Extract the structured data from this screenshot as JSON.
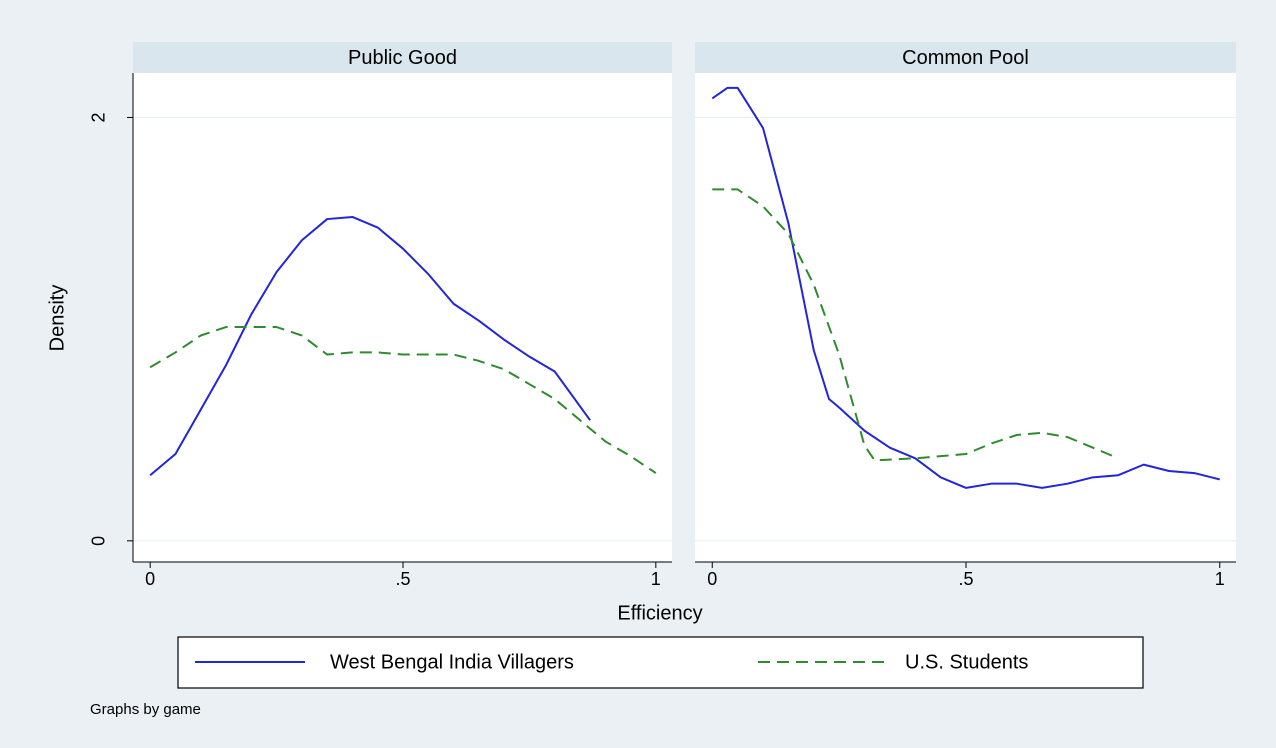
{
  "chart_data": [
    {
      "type": "line",
      "title": "Public Good",
      "xlim": [
        -0.034,
        1.032
      ],
      "ylim": [
        -0.1,
        2.21
      ],
      "xticks": [
        0,
        {
          "value": 0.5,
          "label": ".5"
        },
        1
      ],
      "yticks": [
        0,
        2
      ],
      "grid": true,
      "series": [
        {
          "name": "West Bengal India Villagers",
          "color": "#2424d8",
          "style": "solid",
          "x": [
            0,
            0.05,
            0.1,
            0.15,
            0.2,
            0.25,
            0.3,
            0.35,
            0.4,
            0.45,
            0.5,
            0.55,
            0.6,
            0.65,
            0.7,
            0.75,
            0.8,
            0.87
          ],
          "values": [
            0.31,
            0.41,
            0.62,
            0.83,
            1.07,
            1.27,
            1.42,
            1.52,
            1.53,
            1.48,
            1.38,
            1.26,
            1.12,
            1.04,
            0.95,
            0.87,
            0.8,
            0.57
          ]
        },
        {
          "name": "U.S. Students",
          "color": "#2e8b2e",
          "style": "dash",
          "x": [
            0,
            0.05,
            0.1,
            0.15,
            0.2,
            0.25,
            0.3,
            0.35,
            0.4,
            0.45,
            0.5,
            0.55,
            0.6,
            0.65,
            0.7,
            0.75,
            0.8,
            0.85,
            0.9,
            0.95,
            1
          ],
          "values": [
            0.82,
            0.89,
            0.97,
            1.01,
            1.01,
            1.01,
            0.97,
            0.88,
            0.89,
            0.89,
            0.88,
            0.88,
            0.88,
            0.85,
            0.81,
            0.74,
            0.67,
            0.57,
            0.47,
            0.4,
            0.32
          ]
        }
      ]
    },
    {
      "type": "line",
      "title": "Common Pool",
      "xlim": [
        -0.034,
        1.032
      ],
      "ylim": [
        -0.1,
        2.21
      ],
      "xticks": [
        0,
        {
          "value": 0.5,
          "label": ".5"
        },
        1
      ],
      "yticks": [
        0,
        2
      ],
      "grid": true,
      "series": [
        {
          "name": "West Bengal India Villagers",
          "color": "#2424d8",
          "style": "solid",
          "x": [
            0,
            0.03,
            0.05,
            0.1,
            0.15,
            0.2,
            0.23,
            0.25,
            0.3,
            0.35,
            0.4,
            0.45,
            0.5,
            0.55,
            0.6,
            0.65,
            0.7,
            0.75,
            0.8,
            0.85,
            0.9,
            0.95,
            1
          ],
          "values": [
            2.09,
            2.14,
            2.14,
            1.95,
            1.5,
            0.9,
            0.67,
            0.63,
            0.52,
            0.44,
            0.39,
            0.3,
            0.25,
            0.27,
            0.27,
            0.25,
            0.27,
            0.3,
            0.31,
            0.36,
            0.33,
            0.32,
            0.29
          ]
        },
        {
          "name": "U.S. Students",
          "color": "#2e8b2e",
          "style": "dash",
          "x": [
            0,
            0.05,
            0.1,
            0.15,
            0.2,
            0.25,
            0.3,
            0.32,
            0.4,
            0.45,
            0.5,
            0.55,
            0.6,
            0.65,
            0.7,
            0.75,
            0.8
          ],
          "values": [
            1.66,
            1.66,
            1.58,
            1.45,
            1.21,
            0.88,
            0.45,
            0.38,
            0.39,
            0.4,
            0.41,
            0.46,
            0.5,
            0.51,
            0.49,
            0.44,
            0.39
          ]
        }
      ]
    }
  ],
  "figure": {
    "ylabel": "Density",
    "xlabel": "Efficiency",
    "note": "Graphs by game"
  }
}
